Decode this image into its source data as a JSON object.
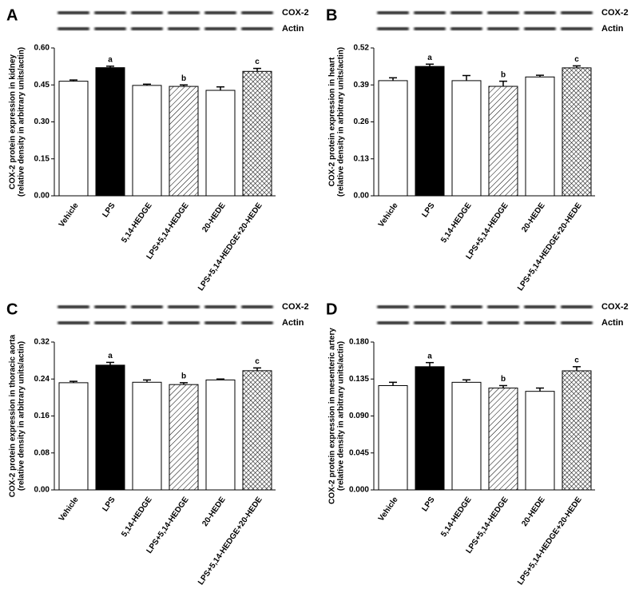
{
  "chart_data": [
    {
      "type": "bar",
      "panel": "A",
      "blot_labels": [
        "COX-2",
        "Actin"
      ],
      "ylabel": [
        "COX-2 protein expression in kidney",
        "(relative density in arbitrary units/actin)"
      ],
      "categories": [
        "Vehicle",
        "LPS",
        "5,14-HEDGE",
        "LPS+5,14-HEDGE",
        "20-HEDE",
        "LPS+5,14-HEDGE+20-HEDE"
      ],
      "values": [
        0.465,
        0.52,
        0.448,
        0.444,
        0.428,
        0.505
      ],
      "errors": [
        0.005,
        0.006,
        0.005,
        0.006,
        0.014,
        0.012
      ],
      "bar_labels": [
        null,
        "a",
        null,
        "b",
        null,
        "c"
      ],
      "fills": [
        "white",
        "black",
        "white",
        "hatch",
        "white",
        "crosshatch"
      ],
      "ylim": [
        0,
        0.6
      ],
      "yticks": [
        {
          "value": 0,
          "label": "0.00"
        },
        0.15,
        {
          "value": 0.3,
          "label": "0.30"
        },
        0.45,
        {
          "value": 0.6,
          "label": "0.60"
        }
      ]
    },
    {
      "type": "bar",
      "panel": "B",
      "blot_labels": [
        "COX-2",
        "Actin"
      ],
      "ylabel": [
        "COX-2 protein expression in heart",
        "(relative density in arbitrary units/actin)"
      ],
      "categories": [
        "Vehicle",
        "LPS",
        "5,14-HEDGE",
        "LPS+5,14-HEDGE",
        "20-HEDE",
        "LPS+5,14-HEDGE+20-HEDE"
      ],
      "values": [
        0.405,
        0.455,
        0.405,
        0.385,
        0.418,
        0.45
      ],
      "errors": [
        0.01,
        0.008,
        0.018,
        0.018,
        0.006,
        0.007
      ],
      "bar_labels": [
        null,
        "a",
        null,
        "b",
        null,
        "c"
      ],
      "fills": [
        "white",
        "black",
        "white",
        "hatch",
        "white",
        "crosshatch"
      ],
      "ylim": [
        0,
        0.52
      ],
      "yticks": [
        {
          "value": 0,
          "label": "0.00"
        },
        0.13,
        0.26,
        0.39,
        0.52
      ]
    },
    {
      "type": "bar",
      "panel": "C",
      "blot_labels": [
        "COX-2",
        "Actin"
      ],
      "ylabel": [
        "COX-2 protein expression in thoracic aorta",
        "(relative density in arbitrary units/actin)"
      ],
      "categories": [
        "Vehicle",
        "LPS",
        "5,14-HEDGE",
        "LPS+5,14-HEDGE",
        "20-HEDE",
        "LPS+5,14-HEDGE+20-HEDE"
      ],
      "values": [
        0.232,
        0.27,
        0.233,
        0.228,
        0.238,
        0.258
      ],
      "errors": [
        0.003,
        0.006,
        0.005,
        0.004,
        0.002,
        0.006
      ],
      "bar_labels": [
        null,
        "a",
        null,
        "b",
        null,
        "c"
      ],
      "fills": [
        "white",
        "black",
        "white",
        "hatch",
        "white",
        "crosshatch"
      ],
      "ylim": [
        0,
        0.32
      ],
      "yticks": [
        {
          "value": 0,
          "label": "0.00"
        },
        0.08,
        0.16,
        0.24,
        0.32
      ]
    },
    {
      "type": "bar",
      "panel": "D",
      "blot_labels": [
        "COX-2",
        "Actin"
      ],
      "ylabel": [
        "COX-2 protein expression in mesenteric artery",
        "(relative density in arbitrary units/actin)"
      ],
      "categories": [
        "Vehicle",
        "LPS",
        "5,14-HEDGE",
        "LPS+5,14-HEDGE",
        "20-HEDE",
        "LPS+5,14-HEDGE+20-HEDE"
      ],
      "values": [
        0.127,
        0.15,
        0.131,
        0.124,
        0.12,
        0.145
      ],
      "errors": [
        0.004,
        0.005,
        0.003,
        0.003,
        0.004,
        0.005
      ],
      "bar_labels": [
        null,
        "a",
        null,
        "b",
        null,
        "c"
      ],
      "fills": [
        "white",
        "black",
        "white",
        "hatch",
        "white",
        "crosshatch"
      ],
      "ylim": [
        0,
        0.18
      ],
      "yticks": [
        {
          "value": 0,
          "label": "0.000"
        },
        0.045,
        {
          "value": 0.09,
          "label": "0.090"
        },
        0.135,
        {
          "value": 0.18,
          "label": "0.180"
        }
      ]
    }
  ]
}
